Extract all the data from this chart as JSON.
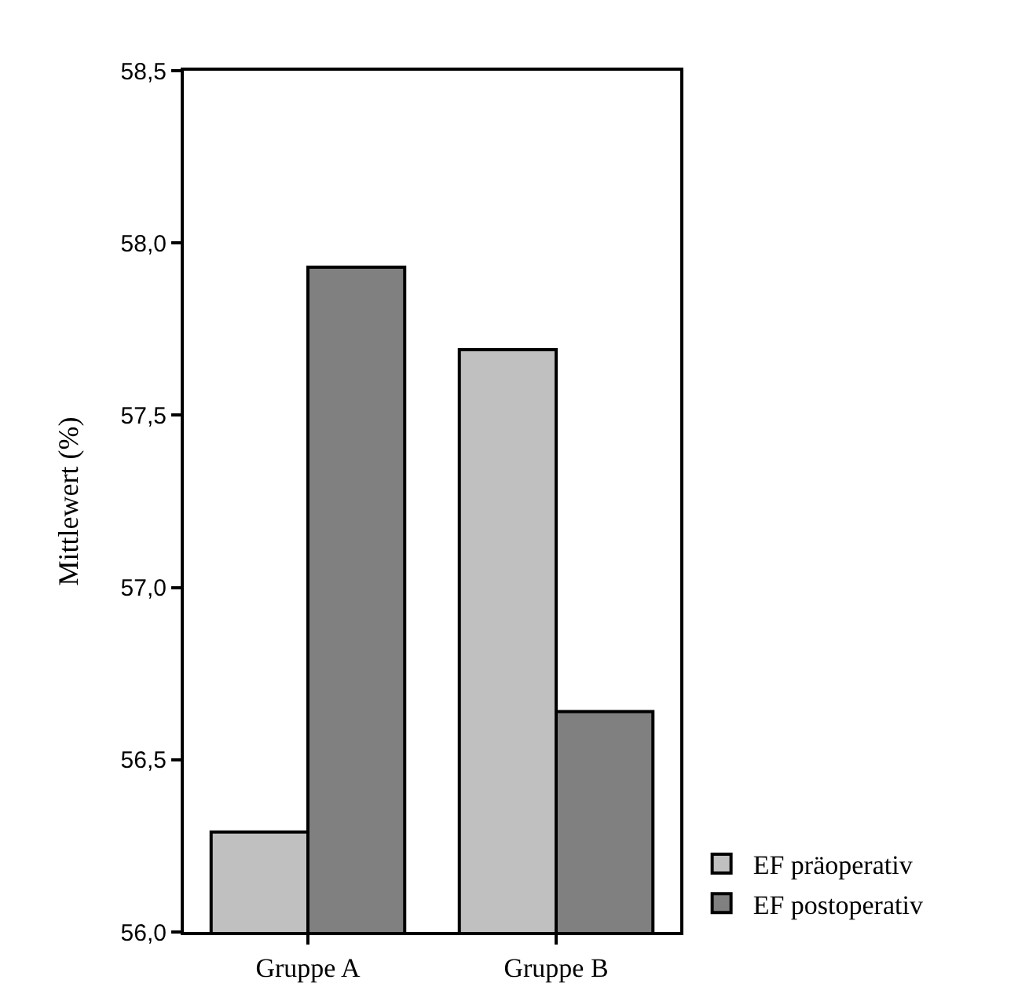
{
  "chart_data": {
    "type": "bar",
    "ylabel": "Mittlewert (%)",
    "categories": [
      "Gruppe A",
      "Gruppe B"
    ],
    "series": [
      {
        "name": "EF präoperativ",
        "color": "#c0c0c0",
        "values": [
          56.29,
          57.69
        ]
      },
      {
        "name": "EF postoperativ",
        "color": "#808080",
        "values": [
          57.93,
          56.64
        ]
      }
    ],
    "ylim": [
      56.0,
      58.5
    ],
    "yticks": [
      {
        "value": 56.0,
        "label": "56,0"
      },
      {
        "value": 56.5,
        "label": "56,5"
      },
      {
        "value": 57.0,
        "label": "57,0"
      },
      {
        "value": 57.5,
        "label": "57,5"
      },
      {
        "value": 58.0,
        "label": "58,0"
      },
      {
        "value": 58.5,
        "label": "58,5"
      }
    ],
    "grid": false,
    "legend": "bottom right"
  }
}
